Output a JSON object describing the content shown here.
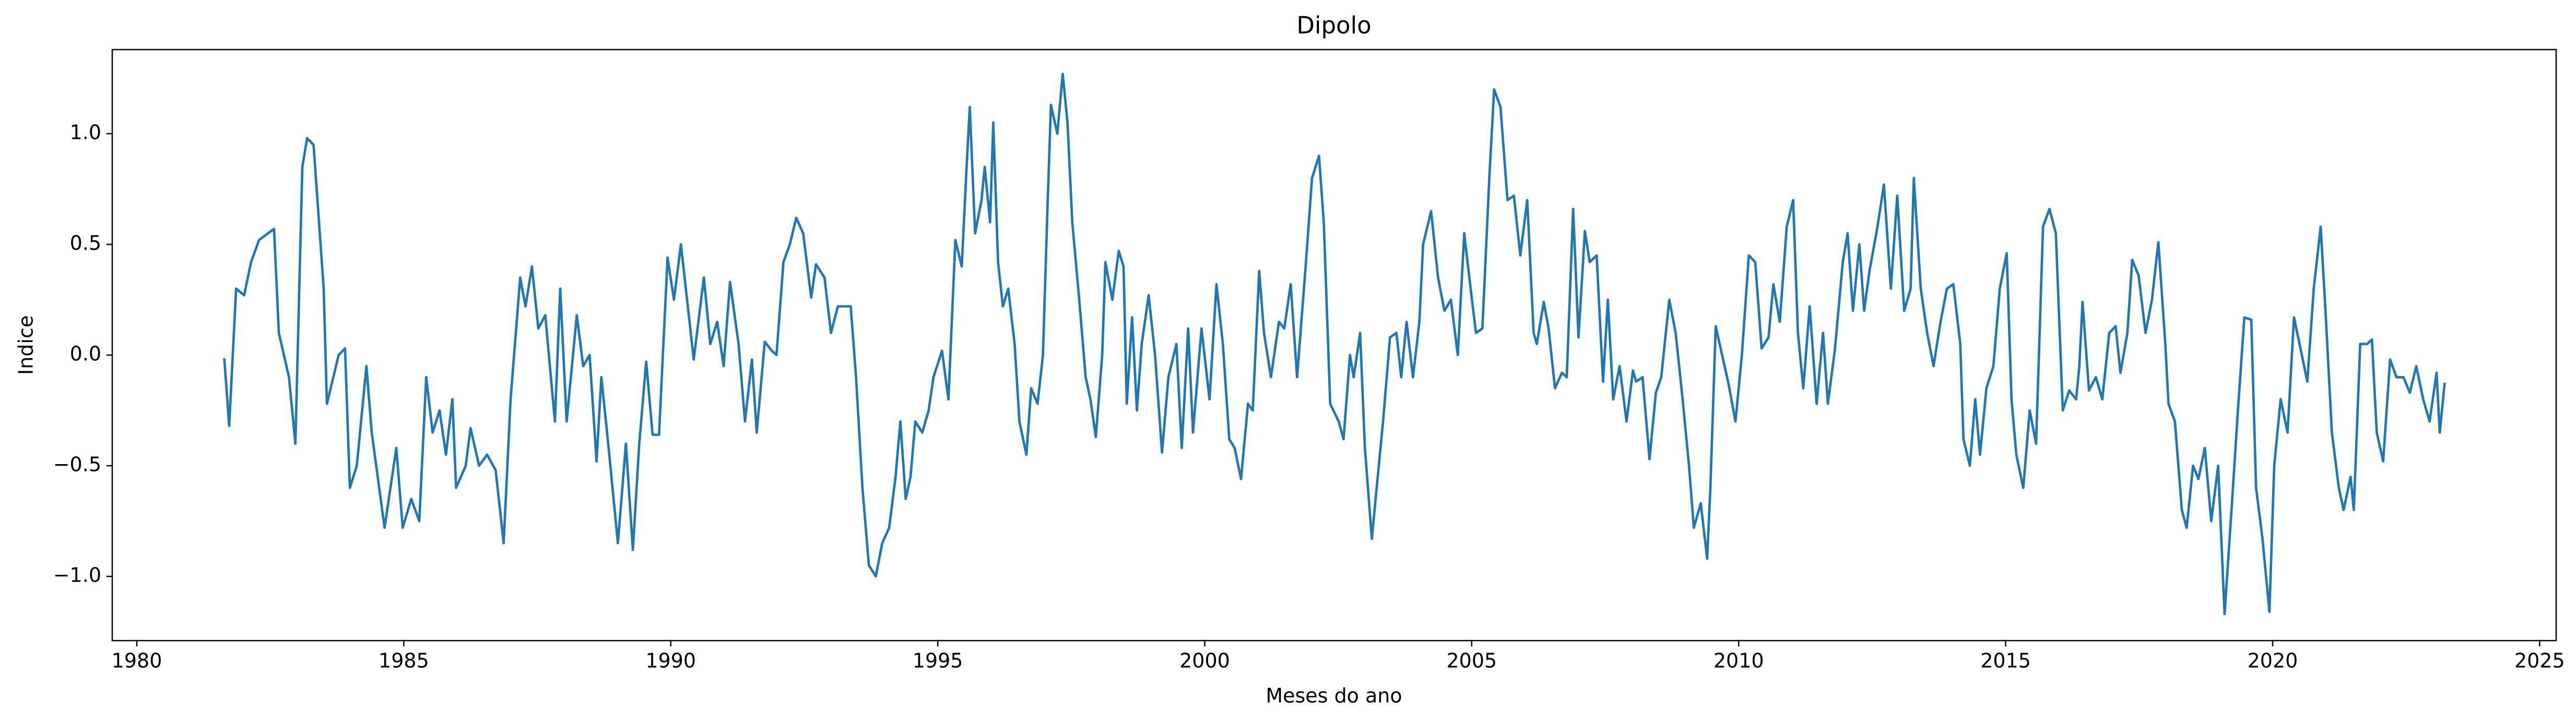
{
  "chart_data": {
    "type": "line",
    "title": "Dipolo",
    "xlabel": "Meses do ano",
    "ylabel": "Indice",
    "color": "#1f77b4",
    "x": [
      1981.64,
      1981.73,
      1981.86,
      1982.01,
      1982.14,
      1982.29,
      1982.57,
      1982.66,
      1982.85,
      1982.97,
      1983.1,
      1983.19,
      1983.31,
      1983.5,
      1983.56,
      1983.78,
      1983.9,
      1983.99,
      1984.12,
      1984.3,
      1984.4,
      1984.64,
      1984.86,
      1984.98,
      1985.14,
      1985.29,
      1985.42,
      1985.54,
      1985.67,
      1985.79,
      1985.91,
      1985.98,
      1986.16,
      1986.25,
      1986.41,
      1986.56,
      1986.72,
      1986.87,
      1987.0,
      1987.18,
      1987.28,
      1987.4,
      1987.52,
      1987.65,
      1987.83,
      1987.93,
      1988.05,
      1988.24,
      1988.36,
      1988.48,
      1988.61,
      1988.7,
      1988.82,
      1989.01,
      1989.16,
      1989.29,
      1989.41,
      1989.54,
      1989.66,
      1989.78,
      1989.94,
      1990.06,
      1990.19,
      1990.43,
      1990.62,
      1990.74,
      1990.87,
      1990.99,
      1991.11,
      1991.27,
      1991.39,
      1991.52,
      1991.61,
      1991.76,
      1991.89,
      1991.98,
      1992.11,
      1992.23,
      1992.35,
      1992.48,
      1992.63,
      1992.72,
      1992.88,
      1993.0,
      1993.13,
      1993.37,
      1993.47,
      1993.59,
      1993.71,
      1993.84,
      1993.96,
      1994.09,
      1994.21,
      1994.3,
      1994.4,
      1994.49,
      1994.58,
      1994.71,
      1994.83,
      1994.92,
      1995.08,
      1995.2,
      1995.33,
      1995.45,
      1995.54,
      1995.6,
      1995.7,
      1995.82,
      1995.88,
      1995.98,
      1996.04,
      1996.13,
      1996.22,
      1996.32,
      1996.44,
      1996.53,
      1996.66,
      1996.75,
      1996.87,
      1996.97,
      1997.06,
      1997.12,
      1997.24,
      1997.34,
      1997.43,
      1997.52,
      1997.65,
      1997.77,
      1997.86,
      1997.96,
      1998.08,
      1998.14,
      1998.27,
      1998.39,
      1998.48,
      1998.54,
      1998.64,
      1998.73,
      1998.82,
      1998.95,
      1999.07,
      1999.2,
      1999.32,
      1999.47,
      1999.57,
      1999.69,
      1999.78,
      1999.94,
      2000.09,
      2000.22,
      2000.34,
      2000.46,
      2000.56,
      2000.68,
      2000.81,
      2000.9,
      2001.02,
      2001.11,
      2001.24,
      2001.39,
      2001.49,
      2001.61,
      2001.73,
      2001.89,
      2002.01,
      2002.14,
      2002.23,
      2002.35,
      2002.51,
      2002.6,
      2002.72,
      2002.79,
      2002.91,
      2003.0,
      2003.13,
      2003.22,
      2003.34,
      2003.47,
      2003.59,
      2003.68,
      2003.78,
      2003.9,
      2004.02,
      2004.09,
      2004.24,
      2004.37,
      2004.49,
      2004.61,
      2004.74,
      2004.86,
      2004.98,
      2005.08,
      2005.2,
      2005.33,
      2005.42,
      2005.54,
      2005.67,
      2005.79,
      2005.91,
      2006.04,
      2006.16,
      2006.22,
      2006.35,
      2006.44,
      2006.56,
      2006.69,
      2006.78,
      2006.9,
      2007.0,
      2007.12,
      2007.21,
      2007.34,
      2007.46,
      2007.55,
      2007.65,
      2007.77,
      2007.9,
      2008.02,
      2008.08,
      2008.2,
      2008.33,
      2008.45,
      2008.55,
      2008.7,
      2008.82,
      2008.95,
      2009.07,
      2009.16,
      2009.29,
      2009.41,
      2009.47,
      2009.57,
      2009.69,
      2009.81,
      2009.94,
      2010.06,
      2010.19,
      2010.31,
      2010.43,
      2010.56,
      2010.65,
      2010.77,
      2010.9,
      2011.02,
      2011.11,
      2011.21,
      2011.33,
      2011.46,
      2011.58,
      2011.67,
      2011.8,
      2011.95,
      2012.04,
      2012.14,
      2012.26,
      2012.35,
      2012.45,
      2012.6,
      2012.72,
      2012.85,
      2012.97,
      2013.1,
      2013.22,
      2013.28,
      2013.41,
      2013.53,
      2013.65,
      2013.78,
      2013.9,
      2014.02,
      2014.15,
      2014.21,
      2014.33,
      2014.43,
      2014.52,
      2014.64,
      2014.77,
      2014.89,
      2015.02,
      2015.11,
      2015.2,
      2015.33,
      2015.45,
      2015.57,
      2015.7,
      2015.82,
      2015.94,
      2016.07,
      2016.19,
      2016.32,
      2016.38,
      2016.44,
      2016.56,
      2016.69,
      2016.81,
      2016.94,
      2017.06,
      2017.15,
      2017.28,
      2017.37,
      2017.49,
      2017.62,
      2017.74,
      2017.86,
      2017.99,
      2018.05,
      2018.17,
      2018.3,
      2018.39,
      2018.51,
      2018.61,
      2018.73,
      2018.85,
      2018.98,
      2019.1,
      2019.23,
      2019.35,
      2019.47,
      2019.6,
      2019.69,
      2019.81,
      2019.94,
      2020.03,
      2020.15,
      2020.28,
      2020.4,
      2020.53,
      2020.65,
      2020.77,
      2020.9,
      2020.99,
      2021.11,
      2021.24,
      2021.33,
      2021.46,
      2021.52,
      2021.64,
      2021.77,
      2021.86,
      2021.95,
      2022.07,
      2022.2,
      2022.32,
      2022.45,
      2022.57,
      2022.69,
      2022.82,
      2022.94,
      2023.07,
      2023.13,
      2023.22
    ],
    "values": [
      -0.02,
      -0.32,
      0.3,
      0.27,
      0.42,
      0.52,
      0.57,
      0.1,
      -0.1,
      -0.4,
      0.85,
      0.98,
      0.95,
      0.3,
      -0.22,
      0.0,
      0.03,
      -0.6,
      -0.5,
      -0.05,
      -0.35,
      -0.78,
      -0.42,
      -0.78,
      -0.65,
      -0.75,
      -0.1,
      -0.35,
      -0.25,
      -0.45,
      -0.2,
      -0.6,
      -0.5,
      -0.33,
      -0.5,
      -0.45,
      -0.52,
      -0.85,
      -0.2,
      0.35,
      0.22,
      0.4,
      0.12,
      0.18,
      -0.3,
      0.3,
      -0.3,
      0.18,
      -0.05,
      0.0,
      -0.48,
      -0.1,
      -0.38,
      -0.85,
      -0.4,
      -0.88,
      -0.4,
      -0.03,
      -0.36,
      -0.36,
      0.44,
      0.25,
      0.5,
      -0.02,
      0.35,
      0.05,
      0.15,
      -0.05,
      0.33,
      0.05,
      -0.3,
      -0.02,
      -0.35,
      0.06,
      0.02,
      0.0,
      0.42,
      0.5,
      0.62,
      0.55,
      0.26,
      0.41,
      0.35,
      0.1,
      0.22,
      0.22,
      -0.1,
      -0.6,
      -0.95,
      -1.0,
      -0.85,
      -0.78,
      -0.55,
      -0.3,
      -0.65,
      -0.55,
      -0.3,
      -0.35,
      -0.25,
      -0.1,
      0.02,
      -0.2,
      0.52,
      0.4,
      0.85,
      1.12,
      0.55,
      0.7,
      0.85,
      0.6,
      1.05,
      0.42,
      0.22,
      0.3,
      0.05,
      -0.3,
      -0.45,
      -0.15,
      -0.22,
      0.0,
      0.7,
      1.13,
      1.0,
      1.27,
      1.05,
      0.6,
      0.25,
      -0.1,
      -0.2,
      -0.37,
      0.0,
      0.42,
      0.25,
      0.47,
      0.4,
      -0.22,
      0.17,
      -0.25,
      0.05,
      0.27,
      0.0,
      -0.44,
      -0.1,
      0.05,
      -0.42,
      0.12,
      -0.35,
      0.12,
      -0.2,
      0.32,
      0.05,
      -0.38,
      -0.42,
      -0.56,
      -0.22,
      -0.25,
      0.38,
      0.1,
      -0.1,
      0.15,
      0.12,
      0.32,
      -0.1,
      0.4,
      0.8,
      0.9,
      0.6,
      -0.22,
      -0.3,
      -0.38,
      0.0,
      -0.1,
      0.1,
      -0.42,
      -0.83,
      -0.6,
      -0.3,
      0.08,
      0.1,
      -0.1,
      0.15,
      -0.1,
      0.15,
      0.5,
      0.65,
      0.35,
      0.2,
      0.25,
      0.0,
      0.55,
      0.3,
      0.1,
      0.12,
      0.8,
      1.2,
      1.12,
      0.7,
      0.72,
      0.45,
      0.7,
      0.1,
      0.05,
      0.24,
      0.12,
      -0.15,
      -0.08,
      -0.1,
      0.66,
      0.08,
      0.56,
      0.42,
      0.45,
      -0.12,
      0.25,
      -0.2,
      -0.05,
      -0.3,
      -0.07,
      -0.12,
      -0.1,
      -0.47,
      -0.17,
      -0.1,
      0.25,
      0.1,
      -0.2,
      -0.5,
      -0.78,
      -0.67,
      -0.92,
      -0.6,
      0.13,
      0.0,
      -0.13,
      -0.3,
      0.0,
      0.45,
      0.42,
      0.03,
      0.08,
      0.32,
      0.15,
      0.58,
      0.7,
      0.1,
      -0.15,
      0.22,
      -0.22,
      0.1,
      -0.22,
      0.02,
      0.42,
      0.55,
      0.2,
      0.5,
      0.2,
      0.38,
      0.58,
      0.77,
      0.3,
      0.72,
      0.2,
      0.3,
      0.8,
      0.3,
      0.1,
      -0.05,
      0.15,
      0.3,
      0.32,
      0.05,
      -0.38,
      -0.5,
      -0.2,
      -0.45,
      -0.15,
      -0.05,
      0.3,
      0.46,
      -0.2,
      -0.45,
      -0.6,
      -0.25,
      -0.4,
      0.58,
      0.66,
      0.55,
      -0.25,
      -0.16,
      -0.2,
      -0.05,
      0.24,
      -0.16,
      -0.1,
      -0.2,
      0.1,
      0.13,
      -0.08,
      0.1,
      0.43,
      0.36,
      0.1,
      0.25,
      0.51,
      0.05,
      -0.22,
      -0.3,
      -0.7,
      -0.78,
      -0.5,
      -0.56,
      -0.42,
      -0.75,
      -0.5,
      -1.17,
      -0.7,
      -0.25,
      0.17,
      0.16,
      -0.6,
      -0.83,
      -1.16,
      -0.5,
      -0.2,
      -0.35,
      0.17,
      0.02,
      -0.12,
      0.3,
      0.58,
      0.2,
      -0.35,
      -0.6,
      -0.7,
      -0.55,
      -0.7,
      0.05,
      0.05,
      0.07,
      -0.35,
      -0.48,
      -0.02,
      -0.1,
      -0.1,
      -0.17,
      -0.05,
      -0.2,
      -0.3,
      -0.08,
      -0.35,
      -0.13
    ],
    "xlim": [
      1979.54,
      2025.31
    ],
    "ylim": [
      -1.29,
      1.38
    ],
    "xticks": [
      1980,
      1985,
      1990,
      1995,
      2000,
      2005,
      2010,
      2015,
      2020,
      2025
    ],
    "yticks": [
      {
        "value": -1,
        "label": "−1.0"
      },
      {
        "value": -0.5,
        "label": "−0.5"
      },
      {
        "value": 0,
        "label": "0.0"
      },
      {
        "value": 0.5,
        "label": "0.5"
      },
      {
        "value": 1,
        "label": "1.0"
      }
    ]
  }
}
